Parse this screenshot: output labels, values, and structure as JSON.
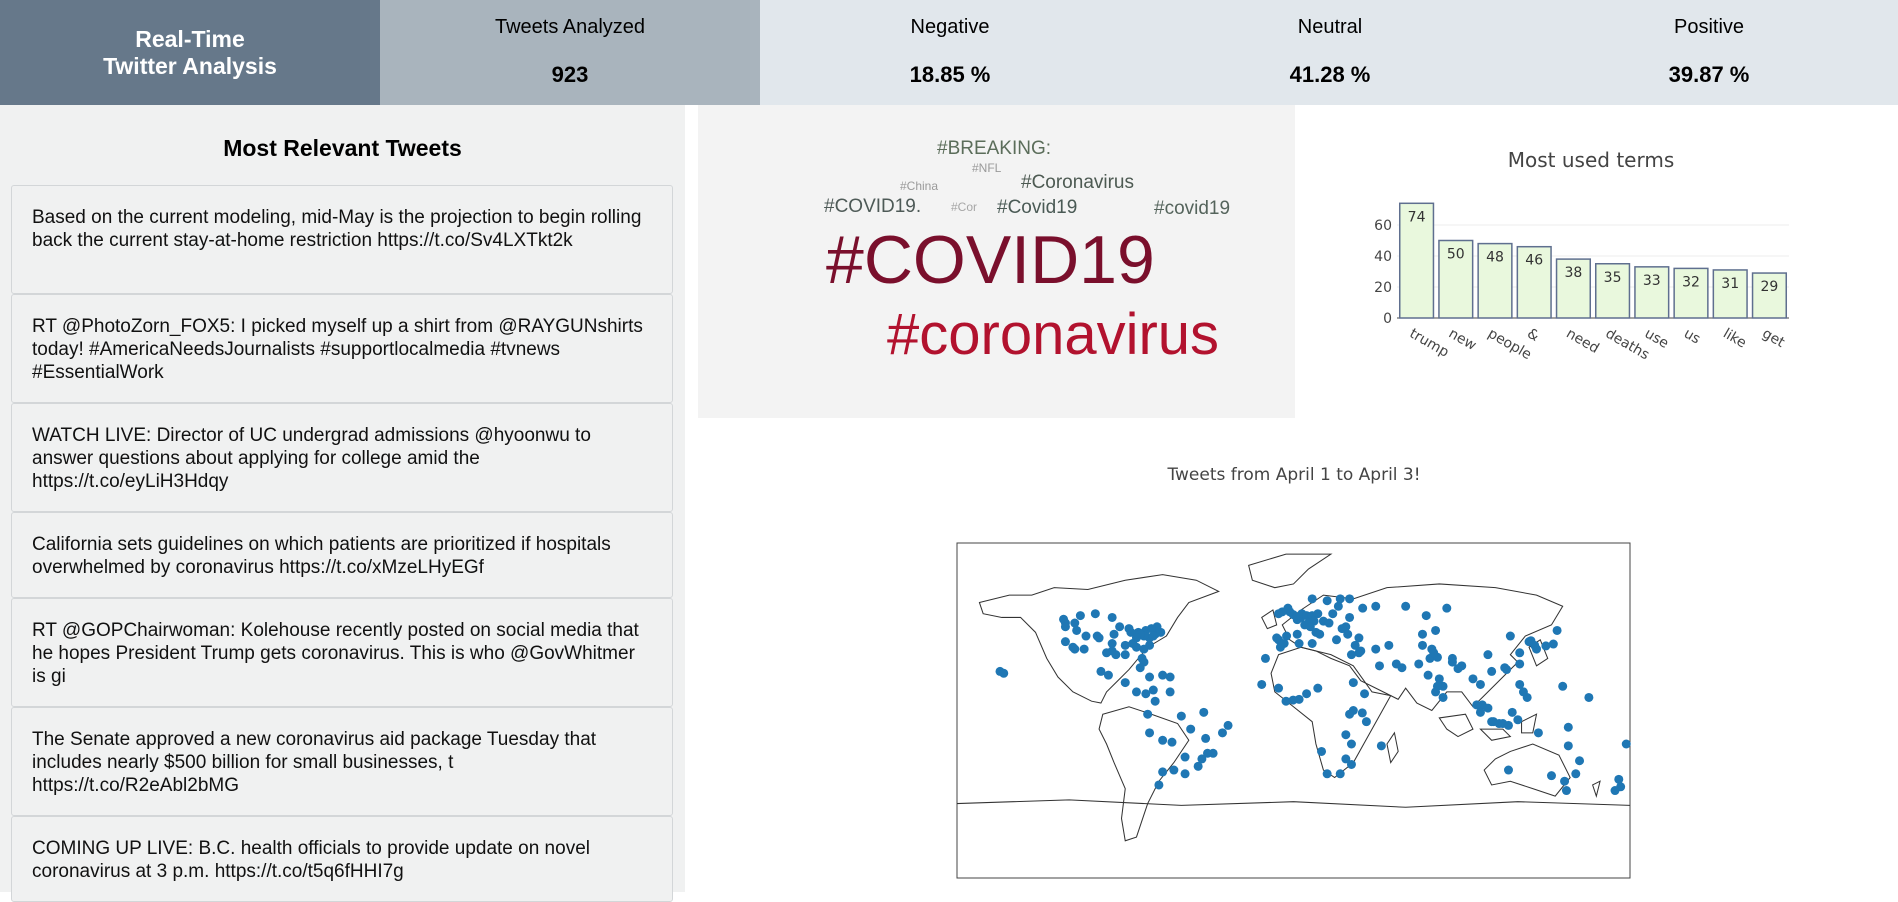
{
  "header": {
    "brand_line1": "Real-Time",
    "brand_line2": "Twitter Analysis",
    "stats": [
      {
        "label": "Tweets Analyzed",
        "value": "923"
      },
      {
        "label": "Negative",
        "value": "18.85 %"
      },
      {
        "label": "Neutral",
        "value": "41.28 %"
      },
      {
        "label": "Positive",
        "value": "39.87 %"
      }
    ]
  },
  "tweets": {
    "title": "Most Relevant Tweets",
    "items": [
      "Based on the current modeling, mid-May is the projection to begin rolling back the current stay-at-home restriction https://t.co/Sv4LXTkt2k",
      "RT @PhotoZorn_FOX5: I picked myself up a shirt from @RAYGUNshirts today! #AmericaNeedsJournalists #supportlocalmedia #tvnews #EssentialWork",
      "WATCH LIVE: Director of UC undergrad admissions @hyoonwu to answer questions about applying for college amid the https://t.co/eyLiH3Hdqy",
      "California sets guidelines on which patients are prioritized if hospitals overwhelmed by coronavirus https://t.co/xMzeLHyEGf",
      "RT @GOPChairwoman: Kolehouse recently posted on social media that he hopes President Trump gets coronavirus. This is who @GovWhitmer is gi",
      "The Senate approved a new coronavirus aid package Tuesday that includes nearly $500 billion for small businesses, t https://t.co/R2eAbl2bMG",
      "COMING UP LIVE: B.C. health officials to provide update on novel coronavirus at 3 p.m. https://t.co/t5q6fHHI7g"
    ]
  },
  "wordcloud": {
    "words": [
      {
        "text": "#BREAKING:",
        "color": "#5b6d5a"
      },
      {
        "text": "#NFL",
        "color": "#9a9a9a"
      },
      {
        "text": "#China",
        "color": "#9a9a9a"
      },
      {
        "text": "#Coronavirus",
        "color": "#4d5a52"
      },
      {
        "text": "#COVID19.",
        "color": "#4e5a57"
      },
      {
        "text": "#Cor",
        "color": "#a6a6a6"
      },
      {
        "text": "#Covid19",
        "color": "#4a5a55"
      },
      {
        "text": "#covid19",
        "color": "#55645c"
      },
      {
        "text": "#COVID19",
        "color": "#7a0f2c"
      },
      {
        "text": "#coronavirus",
        "color": "#b2122e"
      }
    ]
  },
  "chart_data": [
    {
      "type": "bar",
      "title": "Most used terms",
      "categories": [
        "trump",
        "new",
        "people",
        "&",
        "need",
        "deaths",
        "use",
        "us",
        "like",
        "get"
      ],
      "values": [
        74,
        50,
        48,
        46,
        38,
        35,
        33,
        32,
        31,
        29
      ],
      "yticks": [
        "0",
        "20",
        "40",
        "60"
      ],
      "ylim": [
        0,
        80
      ],
      "bar_fill": "#e9f8dd",
      "bar_stroke": "#5f6f8f"
    },
    {
      "type": "scatter",
      "title": "Tweets from April 1 to April 3!",
      "point_color": "#1f77b4",
      "points": [
        [
          -122,
          37
        ],
        [
          -118,
          34
        ],
        [
          -117,
          33
        ],
        [
          -112,
          33
        ],
        [
          -105,
          40
        ],
        [
          -97,
          32
        ],
        [
          -95,
          30
        ],
        [
          -90,
          30
        ],
        [
          -87,
          42
        ],
        [
          -84,
          34
        ],
        [
          -81,
          28
        ],
        [
          -80,
          26
        ],
        [
          -77,
          39
        ],
        [
          -74,
          41
        ],
        [
          -71,
          42
        ],
        [
          -73,
          45
        ],
        [
          -79,
          43
        ],
        [
          -80,
          40
        ],
        [
          -83,
          42
        ],
        [
          -88,
          44
        ],
        [
          -93,
          45
        ],
        [
          -96,
          41
        ],
        [
          -97,
          36
        ],
        [
          -100,
          31
        ],
        [
          -104,
          39
        ],
        [
          -111,
          40
        ],
        [
          -116,
          43
        ],
        [
          -122,
          47
        ],
        [
          -123,
          49
        ],
        [
          -114,
          51
        ],
        [
          -106,
          52
        ],
        [
          -97,
          50
        ],
        [
          -76,
          44
        ],
        [
          -75,
          40
        ],
        [
          -86,
          36
        ],
        [
          -90,
          35
        ],
        [
          -82,
          41
        ],
        [
          -84,
          39
        ],
        [
          -77,
          35
        ],
        [
          -80,
          33
        ],
        [
          -122,
          45
        ],
        [
          -117,
          47
        ],
        [
          -99,
          19
        ],
        [
          -103,
          21
        ],
        [
          -90,
          15
        ],
        [
          -84,
          10
        ],
        [
          -79,
          9
        ],
        [
          -75,
          11
        ],
        [
          -74,
          5
        ],
        [
          -66,
          10
        ],
        [
          -78,
          -2
        ],
        [
          -77,
          -12
        ],
        [
          -70,
          -16
        ],
        [
          -65,
          -17
        ],
        [
          -58,
          -25
        ],
        [
          -58,
          -34
        ],
        [
          -64,
          -32
        ],
        [
          -70,
          -33
        ],
        [
          -72,
          -40
        ],
        [
          -47,
          -15
        ],
        [
          -43,
          -23
        ],
        [
          -46,
          -23
        ],
        [
          -49,
          -26
        ],
        [
          -51,
          -30
        ],
        [
          -38,
          -12
        ],
        [
          -35,
          -8
        ],
        [
          -48,
          -1
        ],
        [
          -60,
          -3
        ],
        [
          -55,
          -10
        ],
        [
          -66,
          18
        ],
        [
          -70,
          19
        ],
        [
          -77,
          18
        ],
        [
          -82,
          23
        ],
        [
          -157,
          21
        ],
        [
          -155,
          20
        ],
        [
          -0.1,
          51.5
        ],
        [
          -2,
          53
        ],
        [
          -3,
          55
        ],
        [
          -6,
          53
        ],
        [
          -8,
          52
        ],
        [
          2,
          48.8
        ],
        [
          4,
          50
        ],
        [
          4.5,
          52
        ],
        [
          7,
          51
        ],
        [
          10,
          51
        ],
        [
          13,
          52
        ],
        [
          9,
          48
        ],
        [
          11,
          48
        ],
        [
          8,
          47
        ],
        [
          6,
          46
        ],
        [
          2,
          41
        ],
        [
          -3.7,
          40
        ],
        [
          -8,
          38
        ],
        [
          -9,
          39
        ],
        [
          -5,
          36
        ],
        [
          12,
          42
        ],
        [
          14,
          41
        ],
        [
          9,
          45
        ],
        [
          16,
          48
        ],
        [
          19,
          47
        ],
        [
          21,
          52
        ],
        [
          24,
          56
        ],
        [
          18,
          59
        ],
        [
          10,
          60
        ],
        [
          25,
          60
        ],
        [
          30,
          60
        ],
        [
          37,
          55
        ],
        [
          44,
          56
        ],
        [
          30,
          50
        ],
        [
          28,
          45
        ],
        [
          26,
          44
        ],
        [
          23,
          38
        ],
        [
          29,
          41
        ],
        [
          35,
          39
        ],
        [
          33,
          35
        ],
        [
          36,
          32
        ],
        [
          35,
          31
        ],
        [
          31,
          30
        ],
        [
          44,
          33
        ],
        [
          51,
          35
        ],
        [
          46,
          24
        ],
        [
          55,
          25
        ],
        [
          58,
          23
        ],
        [
          13,
          12
        ],
        [
          7,
          9
        ],
        [
          3,
          6
        ],
        [
          -0.2,
          5.6
        ],
        [
          -4,
          5
        ],
        [
          -17,
          14
        ],
        [
          -8,
          12
        ],
        [
          -15,
          28
        ],
        [
          32,
          15
        ],
        [
          38,
          9
        ],
        [
          36.8,
          -1.3
        ],
        [
          39,
          -6
        ],
        [
          32,
          0
        ],
        [
          30,
          -2
        ],
        [
          28,
          -13
        ],
        [
          31,
          -18
        ],
        [
          28,
          -26
        ],
        [
          18,
          -34
        ],
        [
          25,
          -34
        ],
        [
          31,
          -29
        ],
        [
          15,
          -22
        ],
        [
          47,
          -19
        ],
        [
          -7,
          34
        ],
        [
          10,
          36
        ],
        [
          3,
          36
        ],
        [
          67,
          25
        ],
        [
          72,
          19
        ],
        [
          73,
          28
        ],
        [
          77,
          28.6
        ],
        [
          78,
          17
        ],
        [
          80,
          13
        ],
        [
          77,
          13
        ],
        [
          76,
          10
        ],
        [
          85,
          26
        ],
        [
          88,
          22.5
        ],
        [
          90,
          24
        ],
        [
          85,
          28
        ],
        [
          75,
          31
        ],
        [
          74,
          33
        ],
        [
          69,
          35
        ],
        [
          80,
          7
        ],
        [
          96,
          17
        ],
        [
          100,
          14
        ],
        [
          101,
          3
        ],
        [
          104,
          1.3
        ],
        [
          107,
          -6
        ],
        [
          110,
          -7
        ],
        [
          112,
          -7
        ],
        [
          115,
          -8
        ],
        [
          120,
          -5
        ],
        [
          117,
          -1
        ],
        [
          125,
          7
        ],
        [
          121,
          14
        ],
        [
          123,
          10
        ],
        [
          114,
          22
        ],
        [
          121,
          25
        ],
        [
          121,
          31
        ],
        [
          116,
          40
        ],
        [
          113,
          23
        ],
        [
          104,
          30
        ],
        [
          106,
          21
        ],
        [
          126,
          37
        ],
        [
          127,
          37.5
        ],
        [
          129,
          35
        ],
        [
          139,
          35.7
        ],
        [
          135,
          34.7
        ],
        [
          141,
          43
        ],
        [
          130,
          33
        ],
        [
          106,
          -6
        ],
        [
          98,
          3
        ],
        [
          100,
          -1
        ],
        [
          144,
          13
        ],
        [
          147,
          -9
        ],
        [
          151,
          -34
        ],
        [
          145,
          -38
        ],
        [
          153,
          -27
        ],
        [
          138,
          -35
        ],
        [
          115,
          -32
        ],
        [
          131,
          -12
        ],
        [
          147,
          -19
        ],
        [
          146,
          -43
        ],
        [
          174,
          -37
        ],
        [
          175,
          -41
        ],
        [
          172,
          -43
        ],
        [
          178,
          -18
        ],
        [
          158,
          7
        ],
        [
          76,
          43
        ],
        [
          71,
          51
        ],
        [
          69,
          41
        ],
        [
          82,
          55
        ],
        [
          60,
          56
        ]
      ]
    }
  ]
}
